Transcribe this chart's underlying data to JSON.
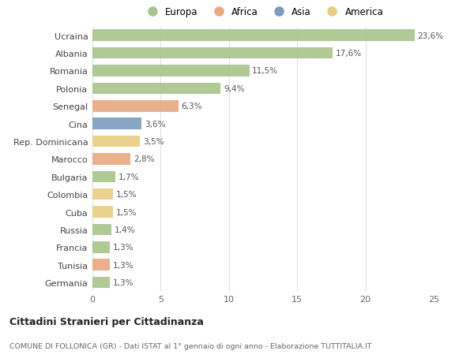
{
  "countries": [
    "Ucraina",
    "Albania",
    "Romania",
    "Polonia",
    "Senegal",
    "Cina",
    "Rep. Dominicana",
    "Marocco",
    "Bulgaria",
    "Colombia",
    "Cuba",
    "Russia",
    "Francia",
    "Tunisia",
    "Germania"
  ],
  "values": [
    23.6,
    17.6,
    11.5,
    9.4,
    6.3,
    3.6,
    3.5,
    2.8,
    1.7,
    1.5,
    1.5,
    1.4,
    1.3,
    1.3,
    1.3
  ],
  "labels": [
    "23,6%",
    "17,6%",
    "11,5%",
    "9,4%",
    "6,3%",
    "3,6%",
    "3,5%",
    "2,8%",
    "1,7%",
    "1,5%",
    "1,5%",
    "1,4%",
    "1,3%",
    "1,3%",
    "1,3%"
  ],
  "continent": [
    "Europa",
    "Europa",
    "Europa",
    "Europa",
    "Africa",
    "Asia",
    "America",
    "Africa",
    "Europa",
    "America",
    "America",
    "Europa",
    "Europa",
    "Africa",
    "Europa"
  ],
  "colors": {
    "Europa": "#a8c48a",
    "Africa": "#e8a882",
    "Asia": "#7a9bbf",
    "America": "#e8cc82"
  },
  "legend_order": [
    "Europa",
    "Africa",
    "Asia",
    "America"
  ],
  "title1": "Cittadini Stranieri per Cittadinanza",
  "title2": "COMUNE DI FOLLONICA (GR) - Dati ISTAT al 1° gennaio di ogni anno - Elaborazione TUTTITALIA.IT",
  "xlim": [
    0,
    25
  ],
  "xticks": [
    0,
    5,
    10,
    15,
    20,
    25
  ],
  "bg_color": "#ffffff",
  "plot_bg_color": "#ffffff",
  "grid_color": "#e0e0e0"
}
